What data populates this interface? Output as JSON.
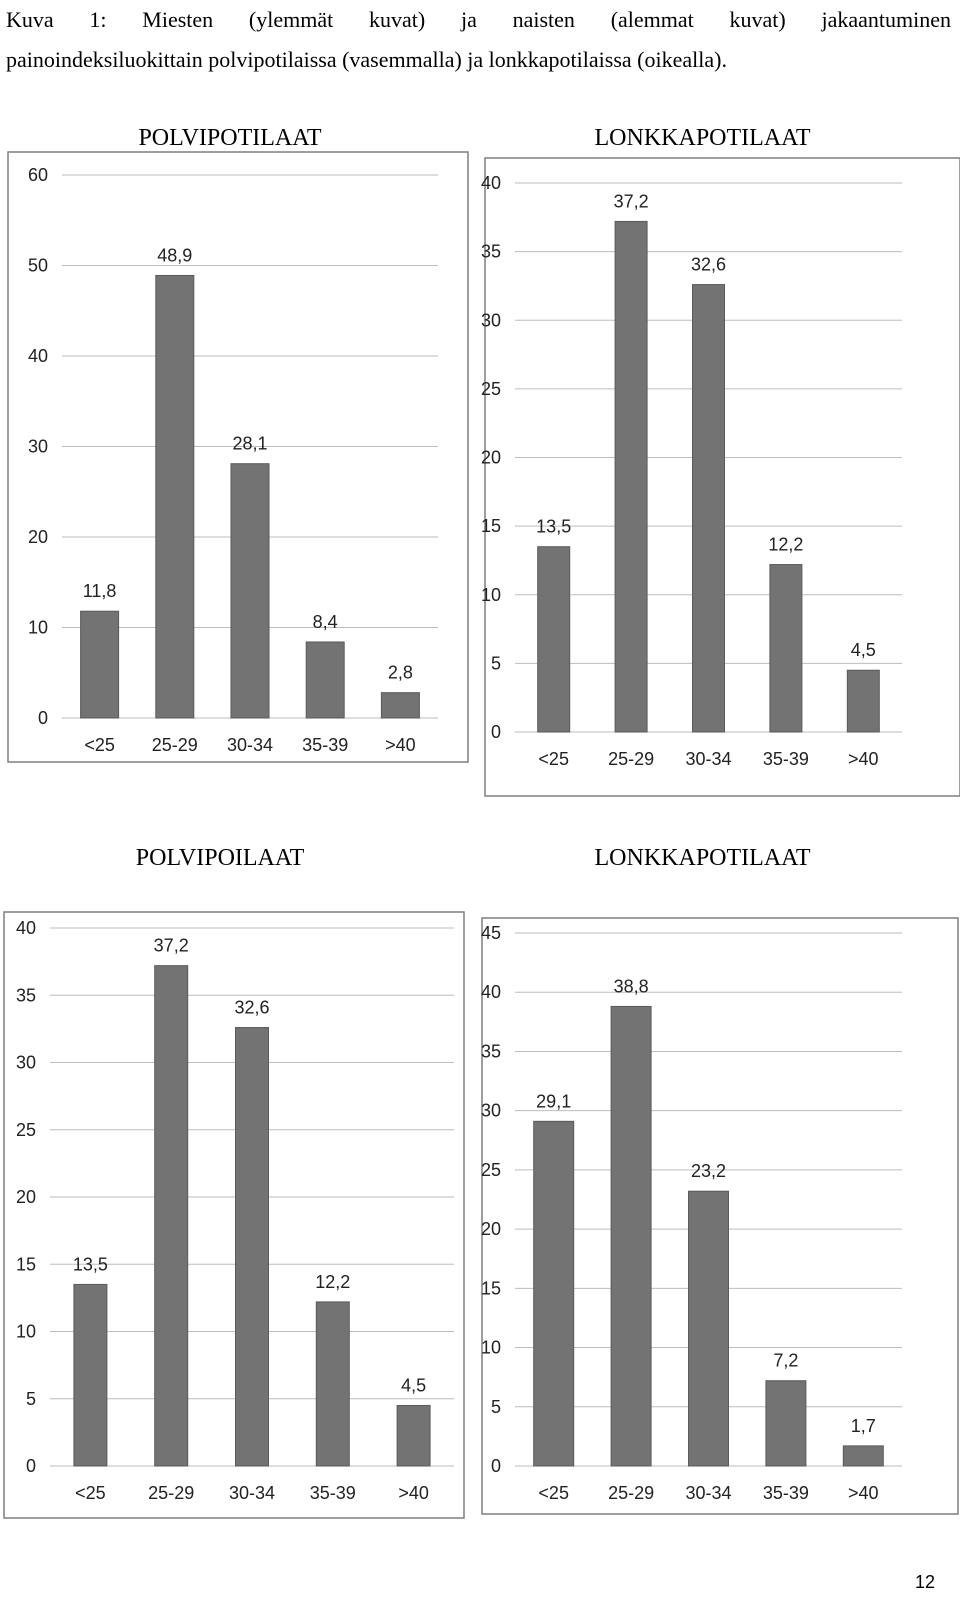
{
  "caption": {
    "line1": "Kuva 1: Miesten (ylemmät kuvat) ja naisten (alemmat kuvat) jakaantuminen",
    "line2": "painoindeksiluokittain polvipotilaissa (vasemmalla) ja lonkkapotilaissa (oikealla)."
  },
  "page_number": "12",
  "colors": {
    "bar": "#737373",
    "bar_stroke": "#5a5a5a",
    "grid": "#bdbdbd",
    "frame": "#7f7f7f",
    "plot_bg": "#f2f2f2"
  },
  "chart_data": [
    {
      "type": "bar",
      "title": "POLVIPOTILAAT",
      "categories": [
        "<25",
        "25-29",
        "30-34",
        "35-39",
        ">40"
      ],
      "values": [
        11.8,
        48.9,
        28.1,
        8.4,
        2.8
      ],
      "value_labels": [
        "11,8",
        "48,9",
        "28,1",
        "8,4",
        "2,8"
      ],
      "ylim": [
        0,
        60
      ],
      "yticks": [
        0,
        10,
        20,
        30,
        40,
        50,
        60
      ],
      "grid": true,
      "xlabel": "",
      "ylabel": ""
    },
    {
      "type": "bar",
      "title": "LONKKAPOTILAAT",
      "categories": [
        "<25",
        "25-29",
        "30-34",
        "35-39",
        ">40"
      ],
      "values": [
        13.5,
        37.2,
        32.6,
        12.2,
        4.5
      ],
      "value_labels": [
        "13,5",
        "37,2",
        "32,6",
        "12,2",
        "4,5"
      ],
      "ylim": [
        0,
        40
      ],
      "yticks": [
        0,
        5,
        10,
        15,
        20,
        25,
        30,
        35,
        40
      ],
      "grid": true,
      "xlabel": "",
      "ylabel": ""
    },
    {
      "type": "bar",
      "title": "POLVIPOILAAT",
      "categories": [
        "<25",
        "25-29",
        "30-34",
        "35-39",
        ">40"
      ],
      "values": [
        13.5,
        37.2,
        32.6,
        12.2,
        4.5
      ],
      "value_labels": [
        "13,5",
        "37,2",
        "32,6",
        "12,2",
        "4,5"
      ],
      "ylim": [
        0,
        40
      ],
      "yticks": [
        0,
        5,
        10,
        15,
        20,
        25,
        30,
        35,
        40
      ],
      "grid": true,
      "xlabel": "",
      "ylabel": ""
    },
    {
      "type": "bar",
      "title": "LONKKAPOTILAAT",
      "categories": [
        "<25",
        "25-29",
        "30-34",
        "35-39",
        ">40"
      ],
      "values": [
        29.1,
        38.8,
        23.2,
        7.2,
        1.7
      ],
      "value_labels": [
        "29,1",
        "38,8",
        "23,2",
        "7,2",
        "1,7"
      ],
      "ylim": [
        0,
        45
      ],
      "yticks": [
        0,
        5,
        10,
        15,
        20,
        25,
        30,
        35,
        40,
        45
      ],
      "grid": true,
      "xlabel": "",
      "ylabel": ""
    }
  ]
}
